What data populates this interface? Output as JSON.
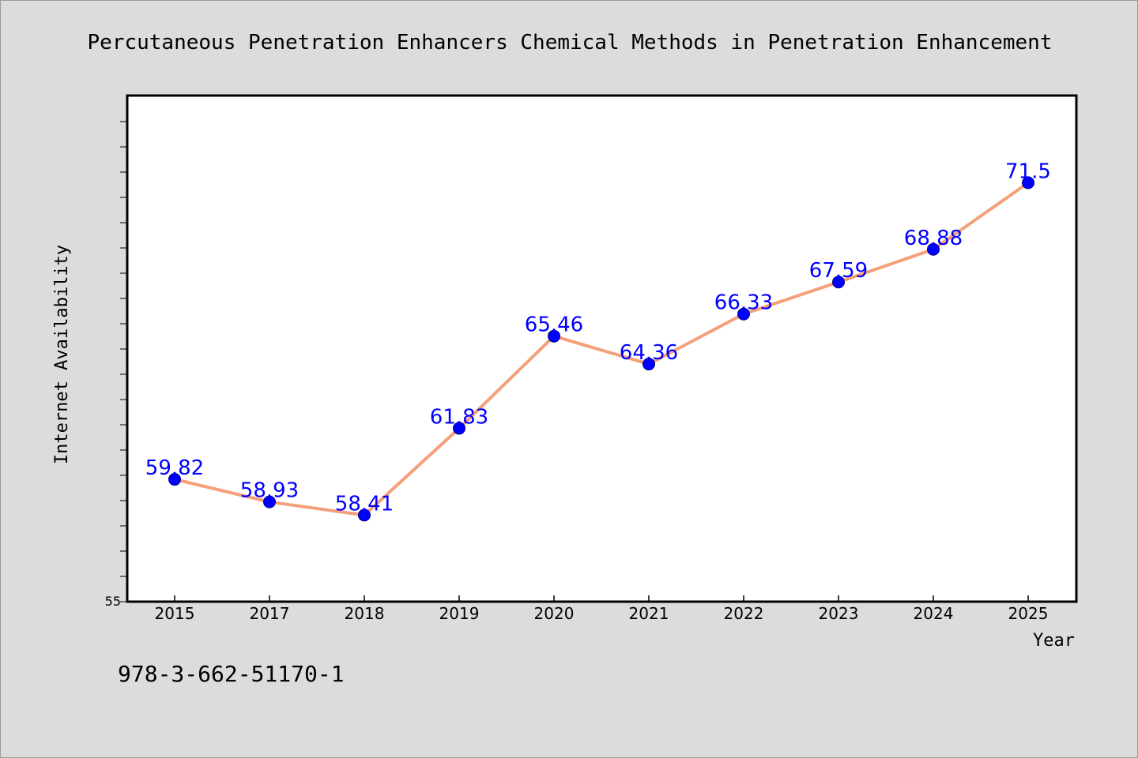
{
  "chart_data": {
    "type": "line",
    "title": "Percutaneous Penetration Enhancers Chemical Methods in Penetration Enhancement",
    "xlabel": "Year",
    "ylabel": "Internet Availability",
    "categories": [
      "2015",
      "2017",
      "2018",
      "2019",
      "2020",
      "2021",
      "2022",
      "2023",
      "2024",
      "2025"
    ],
    "series": [
      {
        "values": [
          59.82,
          58.93,
          58.41,
          61.83,
          65.46,
          64.36,
          66.33,
          67.59,
          68.88,
          71.5
        ]
      }
    ],
    "data_labels": [
      "59.82",
      "58.93",
      "58.41",
      "61.83",
      "65.46",
      "64.36",
      "66.33",
      "67.59",
      "68.88",
      "71.5"
    ],
    "ylim": [
      55,
      75
    ],
    "y_tick_labels": [
      "55"
    ],
    "grid": false,
    "legend": "none",
    "colors": {
      "line": "#f4a07a",
      "marker": "#0000ff",
      "label": "#0000ff",
      "plot_background": "#ffffff",
      "page_background": "#dcdcdc"
    }
  },
  "footer": {
    "isbn": "978-3-662-51170-1"
  }
}
